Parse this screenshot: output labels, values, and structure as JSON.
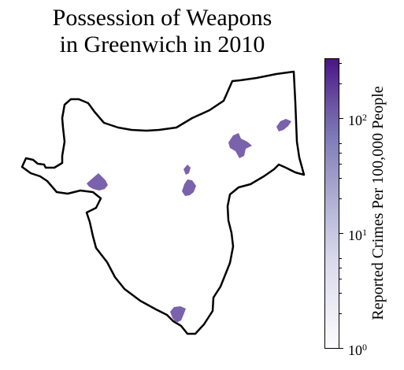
{
  "title_lines": [
    "Possession of Weapons",
    "in Greenwich in 2010"
  ],
  "colorbar": {
    "label": "Reported Crimes Per 100,000 People",
    "scale": "log",
    "range": [
      1,
      320
    ],
    "ticks": [
      {
        "base": "10",
        "exp": "0"
      },
      {
        "base": "10",
        "exp": "1"
      },
      {
        "base": "10",
        "exp": "2"
      }
    ],
    "colors": [
      "#fcfbfd",
      "#dadaeb",
      "#bcbddc",
      "#9e9ac8",
      "#807dba",
      "#6a51a3",
      "#4a1486"
    ]
  },
  "region_color": "#7a62ad",
  "boundary_color": "#000000"
}
